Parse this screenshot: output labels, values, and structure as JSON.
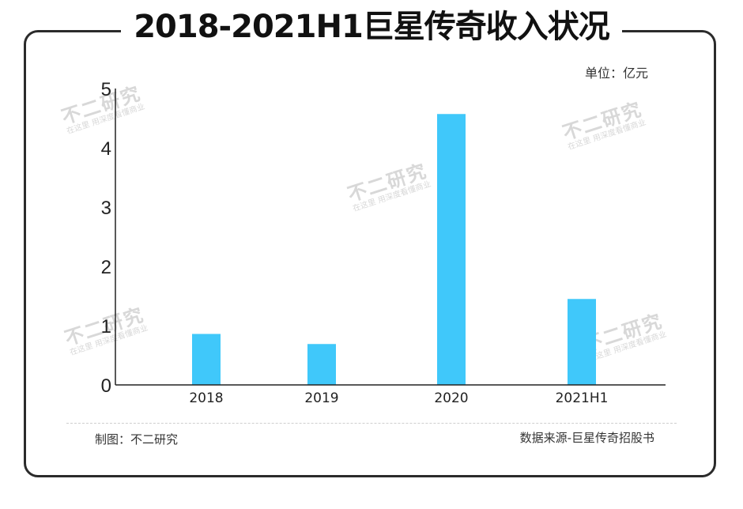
{
  "header": {
    "title": "2018-2021H1巨星传奇收入状况",
    "unit": "单位：亿元"
  },
  "watermarks": [
    {
      "main": "不二研究",
      "sub": "在这里 用深度看懂商业"
    },
    {
      "main": "不二研究",
      "sub": "在这里 用深度看懂商业"
    },
    {
      "main": "不二研究",
      "sub": "在这里 用深度看懂商业"
    },
    {
      "main": "不二研究",
      "sub": "在这里 用深度看懂商业"
    },
    {
      "main": "不二研究",
      "sub": "在这里 用深度看懂商业"
    }
  ],
  "chart_data": {
    "type": "bar",
    "categories": [
      "2018",
      "2019",
      "2020",
      "2021H1"
    ],
    "values": [
      0.86,
      0.69,
      4.57,
      1.45
    ],
    "ylim": [
      0,
      5
    ],
    "yticks": [
      0,
      1,
      2,
      3,
      4,
      5
    ],
    "grid": false,
    "bar_color": "#40c8fa"
  },
  "footer": {
    "maker": "制图：不二研究",
    "source": "数据来源-巨星传奇招股书"
  }
}
